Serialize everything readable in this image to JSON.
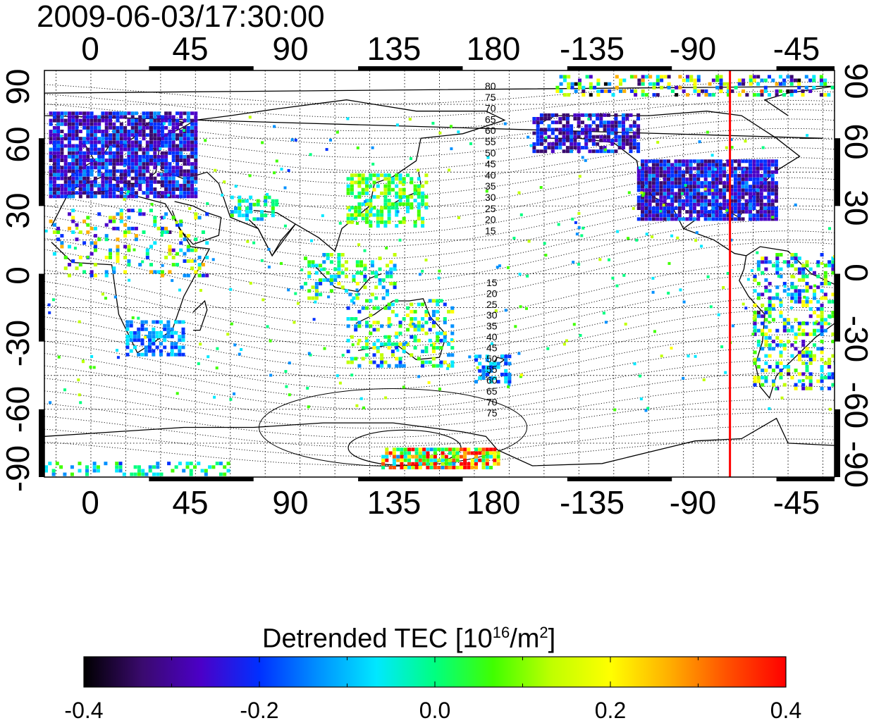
{
  "title": "2009-06-03/17:30:00",
  "map": {
    "x_tick_labels": [
      "0",
      "45",
      "90",
      "135",
      "180",
      "-135",
      "-90",
      "-45"
    ],
    "y_tick_labels_left": [
      "90",
      "60",
      "30",
      "0",
      "-30",
      "-60",
      "-90"
    ],
    "y_tick_labels_right": [
      "90",
      "60",
      "30",
      "0",
      "-30",
      "-60",
      "-90"
    ],
    "x_range_degrees_east": [
      -20,
      320
    ],
    "y_range_degrees": [
      -90,
      90
    ],
    "grid": "dotted every 15 degrees",
    "terminator_meridian_lon": -85,
    "terminator_color": "#ff0000",
    "contour_labels_north": [
      "80",
      "75",
      "70",
      "65",
      "60",
      "55",
      "50",
      "45",
      "40",
      "35",
      "30",
      "25",
      "20",
      "15"
    ],
    "contour_labels_south": [
      "15",
      "20",
      "25",
      "30",
      "35",
      "40",
      "45",
      "50",
      "55",
      "60",
      "65",
      "70",
      "75"
    ]
  },
  "colorbar": {
    "label_prefix": "Detrended TEC  [10",
    "label_exponent": "16",
    "label_middle": "/m",
    "label_exponent2": "2",
    "label_suffix": "]",
    "min": -0.4,
    "max": 0.4,
    "tick_labels": [
      "-0.4",
      "-0.2",
      "0.0",
      "0.2",
      "0.4"
    ],
    "colors": [
      "#000000",
      "#3a0a6e",
      "#4b00c8",
      "#0030ff",
      "#0090ff",
      "#00e8ff",
      "#00ff80",
      "#40ff00",
      "#c0ff00",
      "#ffff00",
      "#ffb000",
      "#ff5000",
      "#ff0000"
    ]
  }
}
